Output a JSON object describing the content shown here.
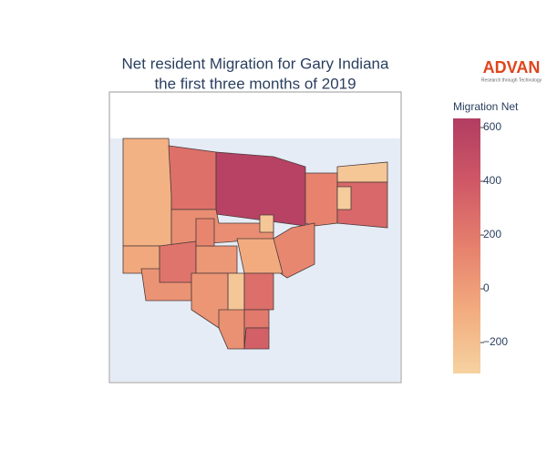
{
  "chart_data": {
    "type": "choropleth",
    "title": "Net resident Migration for Gary Indiana",
    "subtitle": "the first three months of 2019",
    "logo": "ADVAN",
    "logo_tagline": "Research through Technology",
    "colorbar_title": "Migration Net",
    "clim": [
      -315,
      634
    ],
    "cticks": [
      {
        "value": -200,
        "label": "−200"
      },
      0,
      200,
      400,
      600
    ],
    "colorscale": [
      "#f6d2a0",
      "#f2ab7e",
      "#e5806d",
      "#cf5866",
      "#b13d62"
    ],
    "values": [
      -120,
      250,
      590,
      -250,
      150,
      300,
      80,
      120,
      -60,
      50,
      230,
      30,
      -80,
      -250,
      40,
      260,
      70,
      200,
      350,
      130,
      -250,
      -280
    ]
  }
}
